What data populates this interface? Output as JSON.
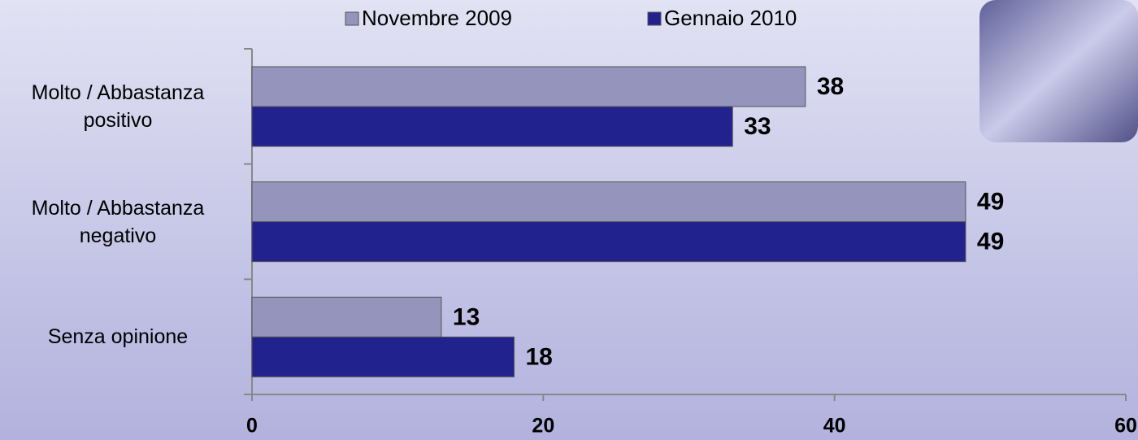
{
  "chart_data": {
    "type": "bar",
    "orientation": "horizontal",
    "categories": [
      "Molto / Abbastanza positivo",
      "Molto / Abbastanza negativo",
      "Senza opinione"
    ],
    "series": [
      {
        "name": "Novembre 2009",
        "color": "#9494bc",
        "values": [
          38,
          49,
          13
        ]
      },
      {
        "name": "Gennaio 2010",
        "color": "#22228e",
        "values": [
          33,
          49,
          18
        ]
      }
    ],
    "xlim": [
      0,
      60
    ],
    "xticks": [
      0,
      20,
      40,
      60
    ],
    "legend": "top"
  }
}
